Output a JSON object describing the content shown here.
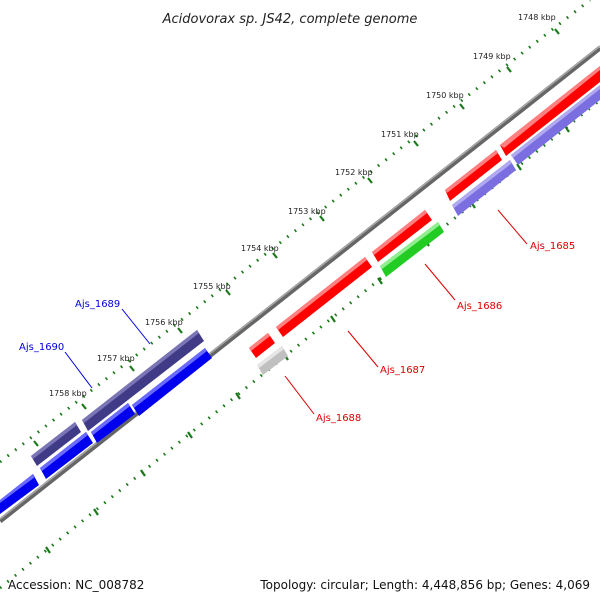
{
  "title": "Acidovorax sp. JS42, complete genome",
  "footer": {
    "accession": "Accession: NC_008782",
    "summary": "Topology: circular; Length: 4,448,856 bp; Genes: 4,069"
  },
  "ticks": [
    "1748 kbp",
    "1749 kbp",
    "1750 kbp",
    "1751 kbp",
    "1752 kbp",
    "1753 kbp",
    "1754 kbp",
    "1755 kbp",
    "1756 kbp",
    "1757 kbp",
    "1758 kbp"
  ],
  "colors": {
    "backbone": "#888888",
    "tick_track": "#1a7a1a",
    "red": "#ff0000",
    "green": "#22cc22",
    "grey": "#c8c8c8",
    "lavender": "#7a6ee0",
    "navy": "#403b86",
    "blue": "#0000ee",
    "red_label": "#dd0000",
    "blue_label": "#0000dd"
  },
  "genes": [
    {
      "name": "Ajs_1685",
      "color": "red_label"
    },
    {
      "name": "Ajs_1686",
      "color": "red_label"
    },
    {
      "name": "Ajs_1687",
      "color": "red_label"
    },
    {
      "name": "Ajs_1688",
      "color": "red_label"
    },
    {
      "name": "Ajs_1689",
      "color": "blue_label"
    },
    {
      "name": "Ajs_1690",
      "color": "blue_label"
    }
  ]
}
